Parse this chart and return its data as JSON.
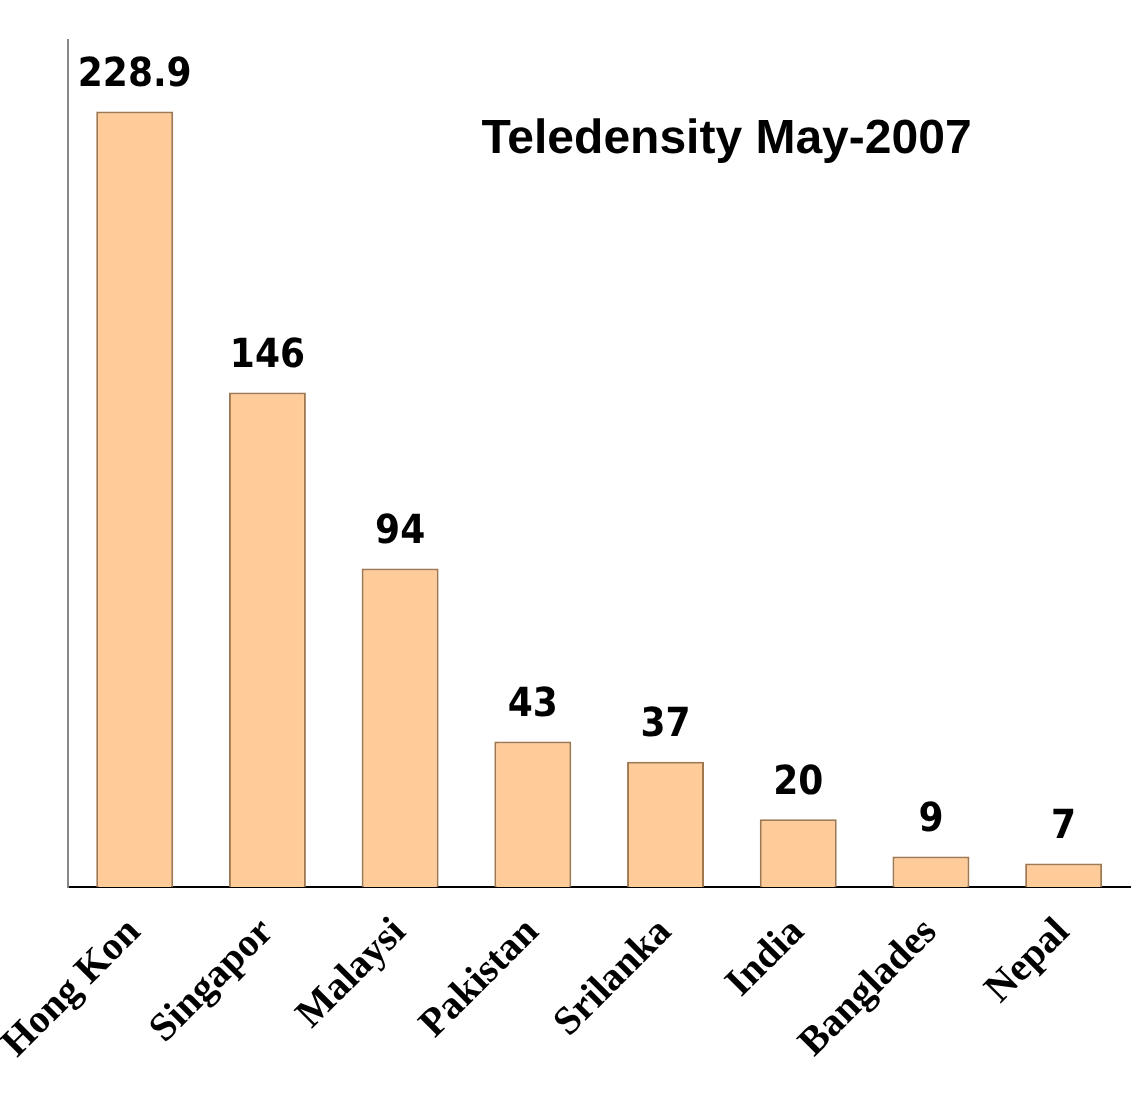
{
  "chart_data": {
    "type": "bar",
    "title": "Teledensity May-2007",
    "categories": [
      "Hong Kon",
      "Singapor",
      "Malaysi",
      "Pakistan",
      "Srilanka",
      "India",
      "Banglades",
      "Nepal"
    ],
    "values": [
      228.9,
      146,
      94,
      43,
      37,
      20,
      9,
      7
    ],
    "color": "#ffcc99",
    "data_labels": true,
    "grid": false,
    "tick_labels": "x"
  }
}
